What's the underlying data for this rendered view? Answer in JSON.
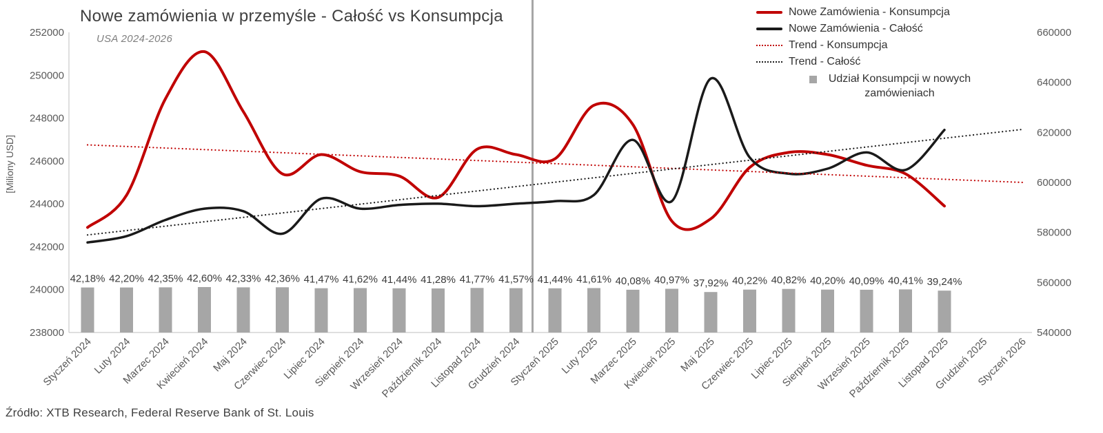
{
  "title": "Nowe zamówienia w przemyśle - Całość vs Konsumpcja",
  "subtitle": "USA 2024-2026",
  "y_left_caption": "[Miliony USD]",
  "source": "Źródło: XTB Research, Federal Reserve Bank of St. Louis",
  "legend": {
    "items": [
      {
        "label": "Nowe Zamówienia - Konsumpcja",
        "swatch": "line-solid-red"
      },
      {
        "label": "Nowe Zamówienia - Całość",
        "swatch": "line-solid-black"
      },
      {
        "label": "Trend - Konsumpcja",
        "swatch": "line-dotted-red"
      },
      {
        "label": "Trend - Całość",
        "swatch": "line-dotted-black"
      },
      {
        "label": "Udział Konsumpcji w nowych zamówieniach",
        "swatch": "square-gray"
      }
    ]
  },
  "chart_data": {
    "type": "line",
    "title": "Nowe zamówienia w przemyśle - Całość vs Konsumpcja",
    "subtitle": "USA 2024-2026",
    "ylabel_left": "[Miliony USD]",
    "grid": false,
    "legend_position": "top-right",
    "categories": [
      "Styczeń 2024",
      "Luty 2024",
      "Marzec 2024",
      "Kwiecień 2024",
      "Maj 2024",
      "Czerwiec 2024",
      "Lipiec 2024",
      "Sierpień 2024",
      "Wrzesień 2024",
      "Październik 2024",
      "Listopad 2024",
      "Grudzień 2024",
      "Styczeń 2025",
      "Luty 2025",
      "Marzec 2025",
      "Kwiecień 2025",
      "Maj 2025",
      "Czerwiec 2025",
      "Lipiec 2025",
      "Sierpień 2025",
      "Wrzesień 2025",
      "Październik 2025",
      "Listopad 2025",
      "Grudzień 2025",
      "Styczeń 2026"
    ],
    "y_left": {
      "min": 238000,
      "max": 252000,
      "step": 2000,
      "ticks": [
        238000,
        240000,
        242000,
        244000,
        246000,
        248000,
        250000,
        252000
      ]
    },
    "y_right": {
      "min": 540000,
      "max": 660000,
      "step": 20000,
      "ticks": [
        540000,
        560000,
        580000,
        600000,
        620000,
        640000,
        660000
      ]
    },
    "separator_between": [
      "Grudzień 2024",
      "Styczeń 2025"
    ],
    "series": [
      {
        "name": "Nowe Zamówienia - Konsumpcja",
        "kind": "line",
        "axis": "left",
        "color": "#c00000",
        "values": [
          242900,
          244400,
          248900,
          251100,
          248300,
          245400,
          246300,
          245500,
          245300,
          244300,
          246550,
          246300,
          246100,
          248600,
          247700,
          243200,
          243300,
          245700,
          246400,
          246300,
          245800,
          245400,
          243900
        ]
      },
      {
        "name": "Nowe Zamówienia - Całość",
        "kind": "line",
        "axis": "right",
        "color": "#1a1a1a",
        "values": [
          576000,
          578500,
          585000,
          589500,
          588500,
          579500,
          593500,
          589500,
          591000,
          591500,
          590500,
          591500,
          592500,
          595000,
          617000,
          592500,
          641500,
          610000,
          603500,
          605500,
          612000,
          605000,
          621000
        ]
      },
      {
        "name": "Trend - Konsumpcja",
        "kind": "trend",
        "axis": "left",
        "color": "#c00000",
        "start": 246750,
        "end": 245000
      },
      {
        "name": "Trend - Całość",
        "kind": "trend",
        "axis": "right",
        "color": "#1a1a1a",
        "start": 579000,
        "end": 621200
      },
      {
        "name": "Udział Konsumpcji w nowych zamówieniach",
        "kind": "bar",
        "color": "#a6a6a6",
        "labels": [
          "42,18%",
          "42,20%",
          "42,35%",
          "42,60%",
          "42,33%",
          "42,36%",
          "41,47%",
          "41,62%",
          "41,44%",
          "41,28%",
          "41,77%",
          "41,57%",
          "41,44%",
          "41,61%",
          "40,08%",
          "40,97%",
          "37,92%",
          "40,22%",
          "40,82%",
          "40,20%",
          "40,09%",
          "40,41%",
          "39,24%"
        ],
        "values_percent": [
          42.18,
          42.2,
          42.35,
          42.6,
          42.33,
          42.36,
          41.47,
          41.62,
          41.44,
          41.28,
          41.77,
          41.57,
          41.44,
          41.61,
          40.08,
          40.97,
          37.92,
          40.22,
          40.82,
          40.2,
          40.09,
          40.41,
          39.24
        ]
      }
    ]
  }
}
